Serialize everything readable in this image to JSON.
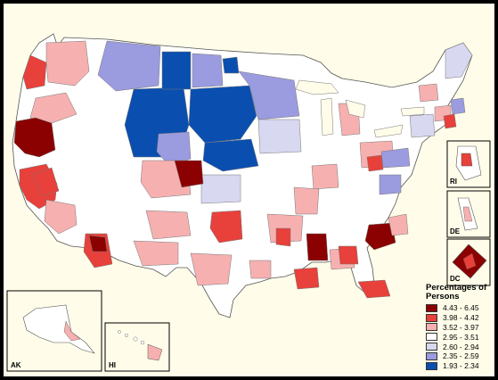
{
  "legend": {
    "title": "Percentages of Persons",
    "items": [
      {
        "label": "4.43 - 6.45",
        "color": "#8b0000"
      },
      {
        "label": "3.98 - 4.42",
        "color": "#e8403a"
      },
      {
        "label": "3.52 - 3.97",
        "color": "#f7b0b0"
      },
      {
        "label": "2.95 - 3.51",
        "color": "#ffffff"
      },
      {
        "label": "2.60 - 2.94",
        "color": "#d8d8f0"
      },
      {
        "label": "2.35 - 2.59",
        "color": "#9b9be0"
      },
      {
        "label": "1.93 - 2.34",
        "color": "#0a4fb0"
      }
    ]
  },
  "insets": {
    "ak": "AK",
    "hi": "HI",
    "ri": "RI",
    "de": "DE",
    "dc": "DC"
  }
}
